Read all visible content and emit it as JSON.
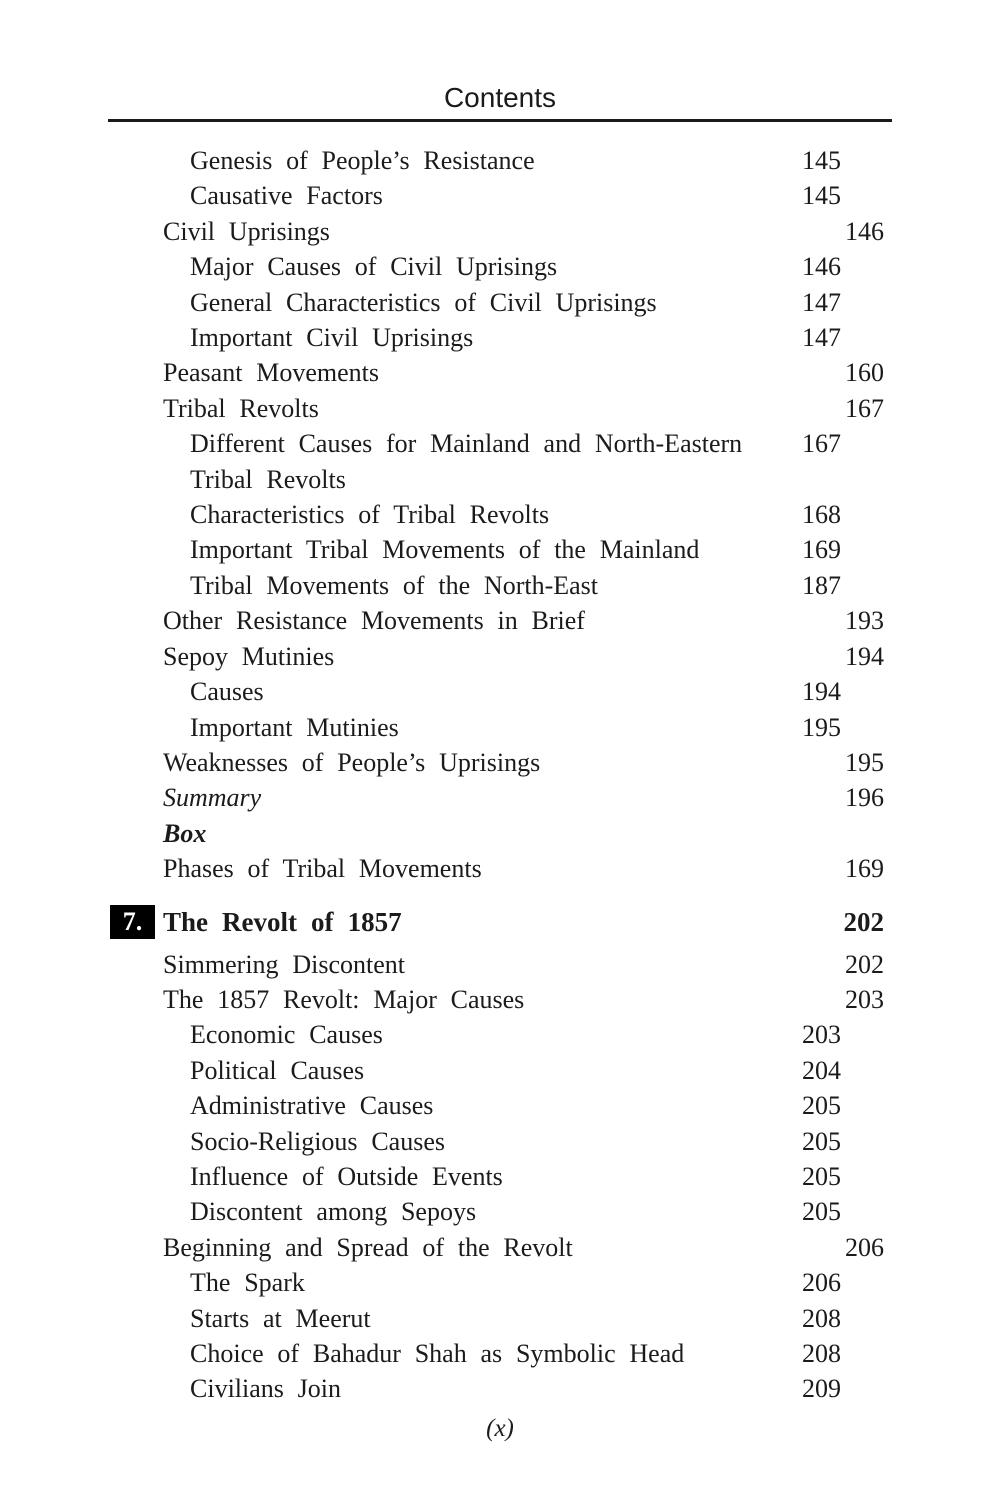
{
  "header": {
    "title": "Contents"
  },
  "colors": {
    "text": "#1b1b1b",
    "rule": "#1a1a1a",
    "chapter_badge_bg": "#000000",
    "chapter_badge_text": "#ffffff"
  },
  "toc": {
    "entries": [
      {
        "label": "Genesis of People’s Resistance",
        "page": "145",
        "level": 2,
        "style": "normal"
      },
      {
        "label": "Causative Factors",
        "page": "145",
        "level": 2,
        "style": "normal"
      },
      {
        "label": "Civil Uprisings",
        "page": "146",
        "level": 1,
        "style": "normal"
      },
      {
        "label": "Major Causes of Civil Uprisings",
        "page": "146",
        "level": 2,
        "style": "normal"
      },
      {
        "label": "General Characteristics of Civil Uprisings",
        "page": "147",
        "level": 2,
        "style": "normal"
      },
      {
        "label": "Important Civil Uprisings",
        "page": "147",
        "level": 2,
        "style": "normal"
      },
      {
        "label": "Peasant Movements",
        "page": "160",
        "level": 1,
        "style": "normal"
      },
      {
        "label": "Tribal Revolts",
        "page": "167",
        "level": 1,
        "style": "normal"
      },
      {
        "label": "Different Causes for Mainland and North-Eastern Tribal Revolts",
        "page": "167",
        "level": 2,
        "style": "normal"
      },
      {
        "label": "Characteristics of Tribal Revolts",
        "page": "168",
        "level": 2,
        "style": "normal"
      },
      {
        "label": "Important Tribal Movements of the Mainland",
        "page": "169",
        "level": 2,
        "style": "normal"
      },
      {
        "label": "Tribal Movements of the North-East",
        "page": "187",
        "level": 2,
        "style": "normal"
      },
      {
        "label": "Other Resistance Movements in Brief",
        "page": "193",
        "level": 1,
        "style": "normal"
      },
      {
        "label": "Sepoy Mutinies",
        "page": "194",
        "level": 1,
        "style": "normal"
      },
      {
        "label": "Causes",
        "page": "194",
        "level": 2,
        "style": "normal"
      },
      {
        "label": "Important Mutinies",
        "page": "195",
        "level": 2,
        "style": "normal"
      },
      {
        "label": "Weaknesses of People’s Uprisings",
        "page": "195",
        "level": 1,
        "style": "normal"
      },
      {
        "label": "Summary",
        "page": "196",
        "level": 1,
        "style": "italic"
      },
      {
        "label": "Box",
        "page": "",
        "level": 1,
        "style": "bold-italic"
      },
      {
        "label": "Phases of Tribal Movements",
        "page": "169",
        "level": 1,
        "style": "normal"
      },
      {
        "type": "chapter",
        "number": "7.",
        "label": "The Revolt of 1857",
        "page": "202"
      },
      {
        "label": "Simmering Discontent",
        "page": "202",
        "level": 1,
        "style": "normal"
      },
      {
        "label": "The 1857 Revolt: Major Causes",
        "page": "203",
        "level": 1,
        "style": "normal"
      },
      {
        "label": "Economic Causes",
        "page": "203",
        "level": 2,
        "style": "normal"
      },
      {
        "label": "Political Causes",
        "page": "204",
        "level": 2,
        "style": "normal"
      },
      {
        "label": "Administrative Causes",
        "page": "205",
        "level": 2,
        "style": "normal"
      },
      {
        "label": "Socio-Religious Causes",
        "page": "205",
        "level": 2,
        "style": "normal"
      },
      {
        "label": "Influence of Outside Events",
        "page": "205",
        "level": 2,
        "style": "normal"
      },
      {
        "label": "Discontent among Sepoys",
        "page": "205",
        "level": 2,
        "style": "normal"
      },
      {
        "label": "Beginning and Spread of the Revolt",
        "page": "206",
        "level": 1,
        "style": "normal"
      },
      {
        "label": "The Spark",
        "page": "206",
        "level": 2,
        "style": "normal"
      },
      {
        "label": "Starts at Meerut",
        "page": "208",
        "level": 2,
        "style": "normal"
      },
      {
        "label": "Choice of Bahadur Shah as Symbolic Head",
        "page": "208",
        "level": 2,
        "style": "normal"
      },
      {
        "label": "Civilians Join",
        "page": "209",
        "level": 2,
        "style": "normal"
      }
    ]
  },
  "footer": {
    "page_marker": "(x)"
  }
}
